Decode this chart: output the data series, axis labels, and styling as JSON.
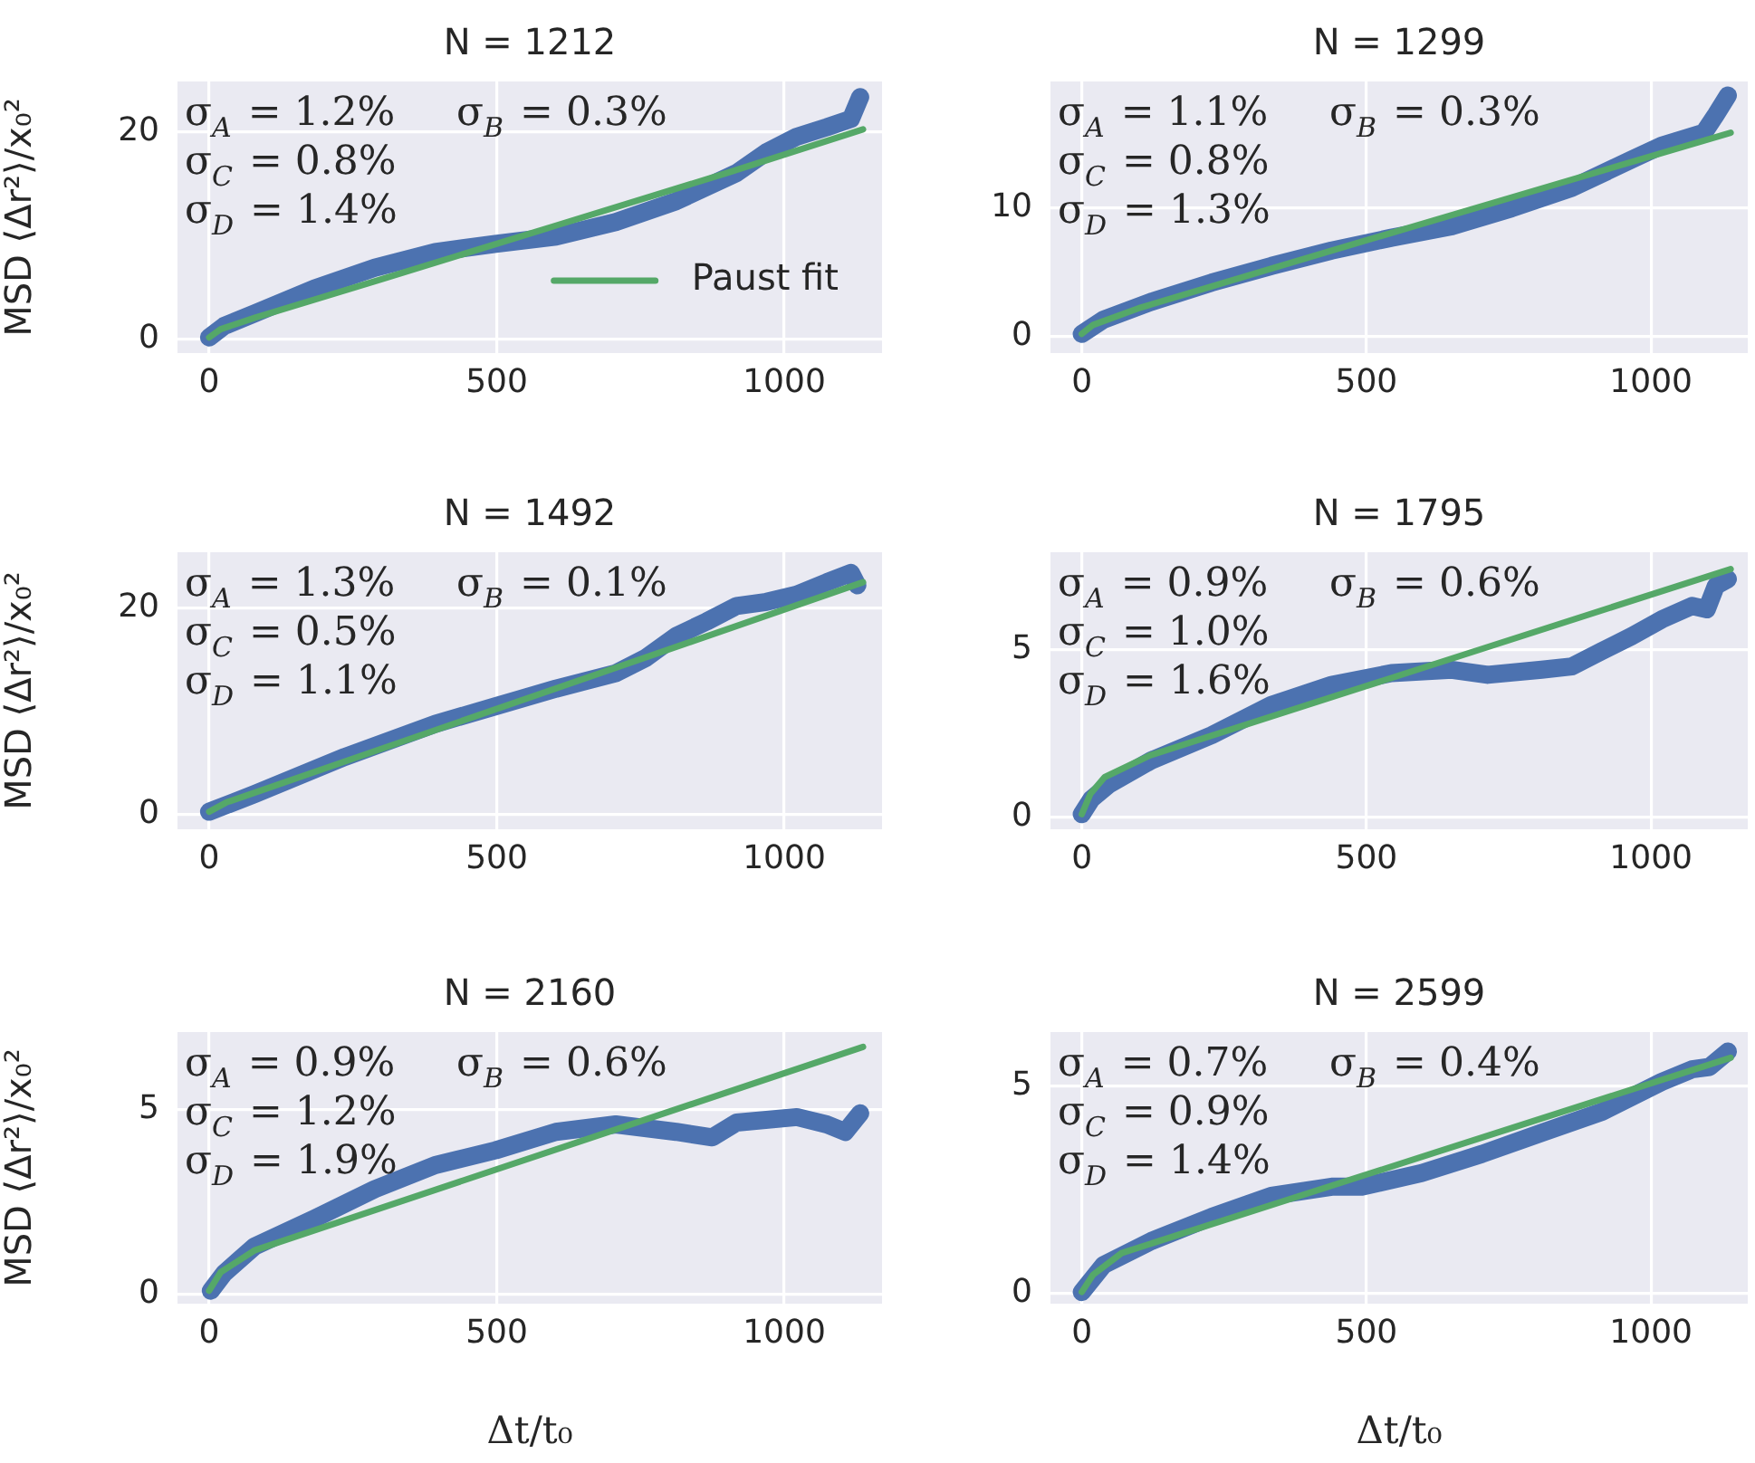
{
  "chart_data": [
    {
      "type": "line",
      "title": "N = 1212",
      "ylabel": "MSD ⟨Δr²⟩/x₀²",
      "annotations": [
        "σ$_{A}$ = 1.2%",
        "σ$_{B}$ = 0.3%",
        "σ$_{C}$ = 0.8%",
        "σ$_{D}$ = 1.4%"
      ],
      "xlim": [
        -55,
        1170
      ],
      "xticks": [
        0,
        500,
        1000
      ],
      "ylim": [
        -1.3,
        24.8
      ],
      "yticks": [
        0,
        20
      ],
      "grid": true,
      "legend": "bottom right",
      "series": [
        {
          "color": "#4c72b0",
          "x": [
            0,
            26,
            79,
            183,
            288,
            393,
            498,
            603,
            707,
            812,
            917,
            969,
            1022,
            1074,
            1116,
            1132
          ],
          "values": [
            0.2,
            1.3,
            2.5,
            4.9,
            6.9,
            8.4,
            9.2,
            9.9,
            11.3,
            13.3,
            16.0,
            18.0,
            19.5,
            20.4,
            21.2,
            23.3
          ]
        },
        {
          "name": "Paust fit",
          "color": "#55a868",
          "x": [
            0,
            20,
            80,
            300,
            600,
            900,
            1137
          ],
          "values": [
            0.2,
            1.0,
            2.1,
            5.8,
            10.9,
            16.0,
            20.2
          ]
        }
      ]
    },
    {
      "type": "line",
      "title": "N = 1299",
      "annotations": [
        "σ$_{A}$ = 1.1%",
        "σ$_{B}$ = 0.3%",
        "σ$_{C}$ = 0.8%",
        "σ$_{D}$ = 1.3%"
      ],
      "xlim": [
        -55,
        1170
      ],
      "xticks": [
        0,
        500,
        1000
      ],
      "ylim": [
        -1.3,
        19.9
      ],
      "yticks": [
        0,
        10
      ],
      "grid": true,
      "series": [
        {
          "color": "#4c72b0",
          "x": [
            0,
            38,
            122,
            228,
            333,
            439,
            544,
            650,
            755,
            861,
            966,
            1019,
            1093,
            1114,
            1135
          ],
          "values": [
            0.2,
            1.3,
            2.7,
            4.2,
            5.5,
            6.7,
            7.7,
            8.6,
            10.0,
            11.6,
            13.8,
            14.9,
            15.9,
            17.3,
            18.8
          ]
        },
        {
          "color": "#55a868",
          "x": [
            0,
            20,
            100,
            500,
            1140
          ],
          "values": [
            0.2,
            0.9,
            2.2,
            7.5,
            15.9
          ]
        }
      ]
    },
    {
      "type": "line",
      "title": "N = 1492",
      "ylabel": "MSD ⟨Δr²⟩/x₀²",
      "annotations": [
        "σ$_{A}$ = 1.3%",
        "σ$_{B}$ = 0.1%",
        "σ$_{C}$ = 0.5%",
        "σ$_{D}$ = 1.1%"
      ],
      "xlim": [
        -55,
        1170
      ],
      "xticks": [
        0,
        500,
        1000
      ],
      "ylim": [
        -1.4,
        25.4
      ],
      "yticks": [
        0,
        20
      ],
      "grid": true,
      "series": [
        {
          "color": "#4c72b0",
          "x": [
            0,
            79,
            236,
            393,
            498,
            603,
            707,
            760,
            812,
            865,
            917,
            969,
            1022,
            1074,
            1116,
            1127
          ],
          "values": [
            0.3,
            2.0,
            5.6,
            8.8,
            10.5,
            12.2,
            13.7,
            15.2,
            17.3,
            18.7,
            20.2,
            20.6,
            21.3,
            22.5,
            23.4,
            22.2
          ]
        },
        {
          "color": "#55a868",
          "x": [
            0,
            30,
            1137
          ],
          "values": [
            0.3,
            1.2,
            22.5
          ]
        }
      ]
    },
    {
      "type": "line",
      "title": "N = 1795",
      "annotations": [
        "σ$_{A}$ = 0.9%",
        "σ$_{B}$ = 0.6%",
        "σ$_{C}$ = 1.0%",
        "σ$_{D}$ = 1.6%"
      ],
      "xlim": [
        -55,
        1170
      ],
      "xticks": [
        0,
        500,
        1000
      ],
      "ylim": [
        -0.35,
        7.9
      ],
      "yticks": [
        0,
        5
      ],
      "grid": true,
      "series": [
        {
          "color": "#4c72b0",
          "x": [
            0,
            17,
            49,
            122,
            228,
            333,
            439,
            544,
            650,
            713,
            808,
            861,
            913,
            966,
            1019,
            1072,
            1098,
            1114,
            1135
          ],
          "values": [
            0.1,
            0.55,
            1.0,
            1.7,
            2.45,
            3.35,
            3.95,
            4.3,
            4.4,
            4.25,
            4.4,
            4.5,
            4.95,
            5.4,
            5.9,
            6.3,
            6.2,
            6.9,
            7.1
          ]
        },
        {
          "color": "#55a868",
          "x": [
            0,
            15,
            40,
            120,
            1140
          ],
          "values": [
            0.1,
            0.7,
            1.2,
            1.85,
            7.4
          ]
        }
      ]
    },
    {
      "type": "line",
      "title": "N = 2160",
      "xlabel": "Δt/t₀",
      "ylabel": "MSD ⟨Δr²⟩/x₀²",
      "annotations": [
        "σ$_{A}$ = 0.9%",
        "σ$_{B}$ = 0.6%",
        "σ$_{C}$ = 1.2%",
        "σ$_{D}$ = 1.9%"
      ],
      "xlim": [
        -55,
        1170
      ],
      "xticks": [
        0,
        500,
        1000
      ],
      "ylim": [
        -0.25,
        7.1
      ],
      "yticks": [
        0,
        5
      ],
      "grid": true,
      "series": [
        {
          "color": "#4c72b0",
          "x": [
            3,
            26,
            79,
            183,
            288,
            393,
            498,
            603,
            707,
            812,
            875,
            917,
            1022,
            1074,
            1106,
            1132
          ],
          "values": [
            0.1,
            0.57,
            1.3,
            2.05,
            2.85,
            3.5,
            3.9,
            4.4,
            4.6,
            4.4,
            4.25,
            4.65,
            4.8,
            4.6,
            4.4,
            4.9
          ]
        },
        {
          "color": "#55a868",
          "x": [
            0,
            20,
            80,
            1137
          ],
          "values": [
            0.1,
            0.6,
            1.2,
            6.7
          ]
        }
      ]
    },
    {
      "type": "line",
      "title": "N = 2599",
      "xlabel": "Δt/t₀",
      "annotations": [
        "σ$_{A}$ = 0.7%",
        "σ$_{B}$ = 0.4%",
        "σ$_{C}$ = 0.9%",
        "σ$_{D}$ = 1.4%"
      ],
      "xlim": [
        -55,
        1170
      ],
      "xticks": [
        0,
        500,
        1000
      ],
      "ylim": [
        -0.25,
        6.3
      ],
      "yticks": [
        0,
        5
      ],
      "grid": true,
      "series": [
        {
          "color": "#4c72b0",
          "x": [
            0,
            38,
            122,
            228,
            333,
            439,
            492,
            597,
            703,
            808,
            914,
            1019,
            1072,
            1103,
            1135
          ],
          "values": [
            0.03,
            0.68,
            1.26,
            1.84,
            2.35,
            2.57,
            2.57,
            2.9,
            3.36,
            3.87,
            4.38,
            5.1,
            5.4,
            5.46,
            5.83
          ]
        },
        {
          "color": "#55a868",
          "x": [
            0,
            20,
            70,
            1140
          ],
          "values": [
            0.03,
            0.45,
            0.97,
            5.68
          ]
        }
      ]
    }
  ]
}
